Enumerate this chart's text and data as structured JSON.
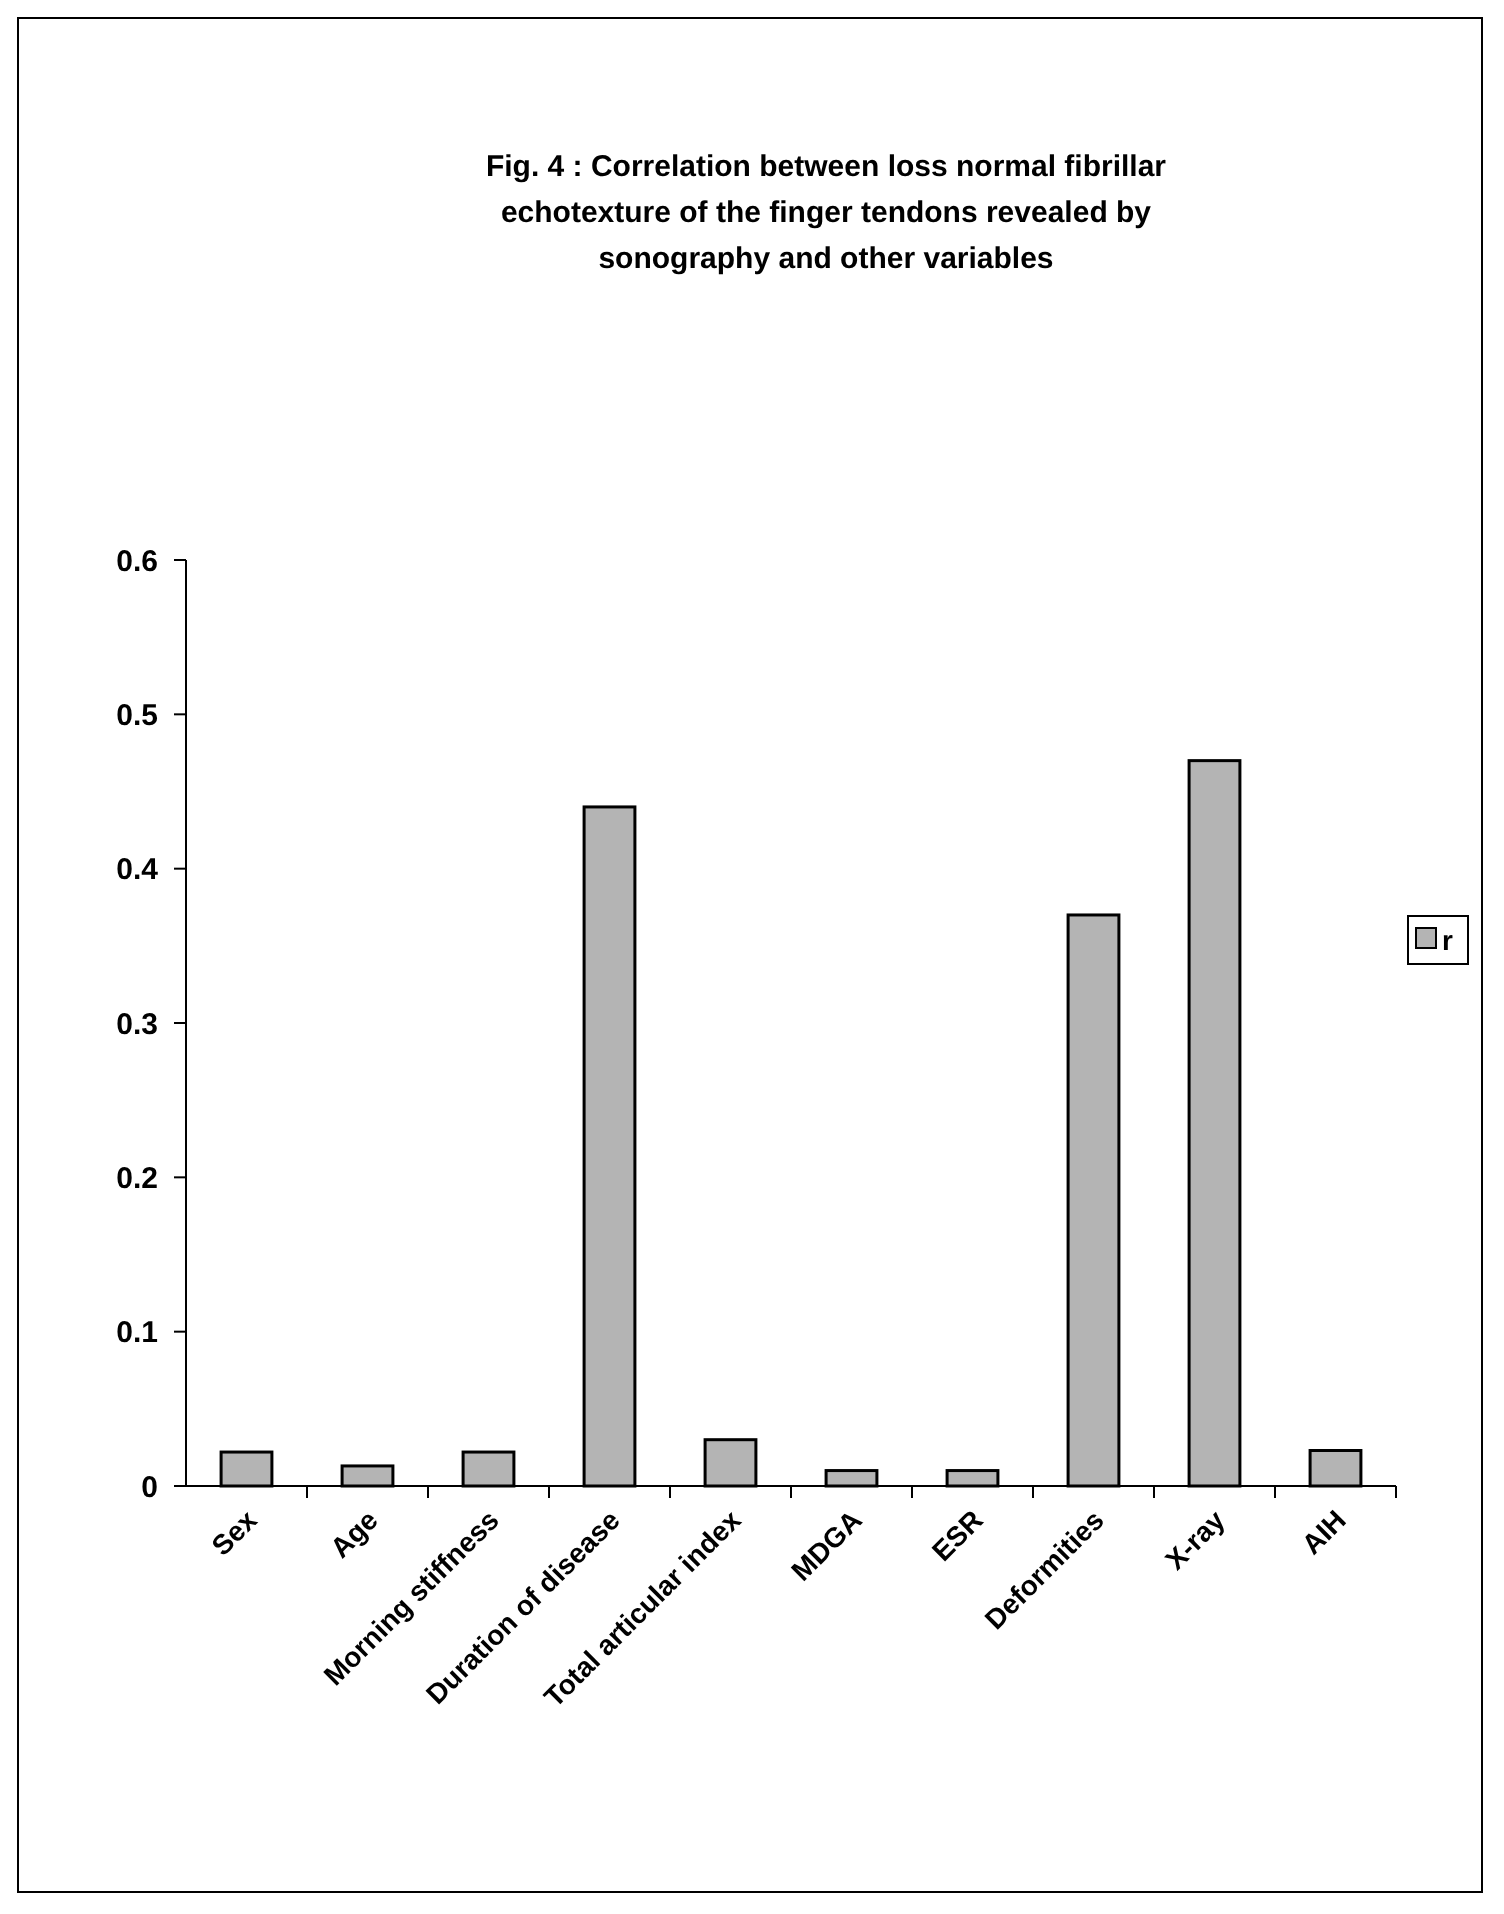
{
  "chart_data": {
    "type": "bar",
    "title": "Fig. 4 : Correlation between loss normal fibrillar echotexture of the finger tendons revealed by sonography and other variables",
    "categories": [
      "Sex",
      "Age",
      "Morning stiffness",
      "Duration of disease",
      "Total articular index",
      "MDGA",
      "ESR",
      "Deformities",
      "X-ray",
      "AIH"
    ],
    "series": [
      {
        "name": "r",
        "color": "#b4b4b4",
        "values": [
          0.022,
          0.013,
          0.022,
          0.44,
          0.03,
          0.01,
          0.01,
          0.37,
          0.47,
          0.023
        ]
      }
    ],
    "ylim": [
      0,
      0.6
    ],
    "yticks": [
      0,
      0.1,
      0.2,
      0.3,
      0.4,
      0.5,
      0.6
    ],
    "grid": false,
    "legend": "right"
  }
}
